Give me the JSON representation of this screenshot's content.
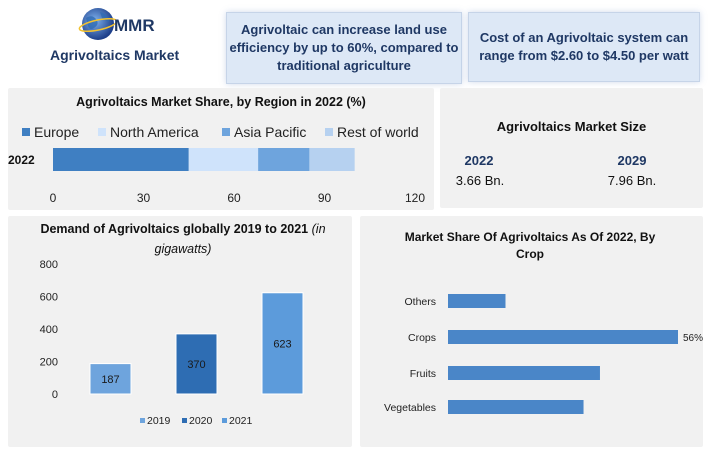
{
  "brand": {
    "logo_text": "MMR",
    "title": "Agrivoltaics Market"
  },
  "callouts": {
    "efficiency": "Agrivoltaic can increase land use efficiency by up to 60%, compared to traditional agriculture",
    "cost": "Cost of an Agrivoltaic system can range from $2.60 to $4.50 per watt"
  },
  "market_size": {
    "title": "Agrivoltaics Market Size",
    "year1": "2022",
    "value1": "3.66 Bn.",
    "year2": "2029",
    "value2": "7.96 Bn."
  },
  "colors": {
    "europe": "#3f7fc2",
    "north_america": "#cfe3fb",
    "asia_pacific": "#6ea4dd",
    "rest_of_world": "#b6d1f0",
    "navy": "#1f3864"
  },
  "chart_data": [
    {
      "type": "bar",
      "orientation": "horizontal",
      "stacked": true,
      "title": "Agrivoltaics Market Share, by Region in 2022 (%)",
      "categories": [
        "2022"
      ],
      "series": [
        {
          "name": "Europe",
          "values": [
            45
          ]
        },
        {
          "name": "North America",
          "values": [
            23
          ]
        },
        {
          "name": "Asia Pacific",
          "values": [
            17
          ]
        },
        {
          "name": "Rest of world",
          "values": [
            15
          ]
        }
      ],
      "xlim": [
        0,
        120
      ],
      "xticks": [
        "0",
        "30",
        "60",
        "90",
        "120"
      ],
      "legend": "top"
    },
    {
      "type": "bar",
      "title": "Demand of Agrivoltaics globally 2019 to 2021",
      "title_note": "(in gigawatts)",
      "categories": [
        "2019",
        "2020",
        "2021"
      ],
      "values": [
        187,
        370,
        623
      ],
      "data_labels": [
        "187",
        "370",
        "623"
      ],
      "ylim": [
        0,
        800
      ],
      "yticks": [
        "800",
        "600",
        "400",
        "200",
        "0"
      ],
      "legend": "bottom"
    },
    {
      "type": "bar",
      "orientation": "horizontal",
      "title": "Market Share Of Agrivoltaics As Of 2022, By Crop",
      "categories": [
        "Others",
        "Crops",
        "Fruits",
        "Vegetables"
      ],
      "values": [
        14,
        56,
        37,
        33
      ],
      "data_labels": [
        "",
        "56%",
        "",
        ""
      ]
    }
  ]
}
